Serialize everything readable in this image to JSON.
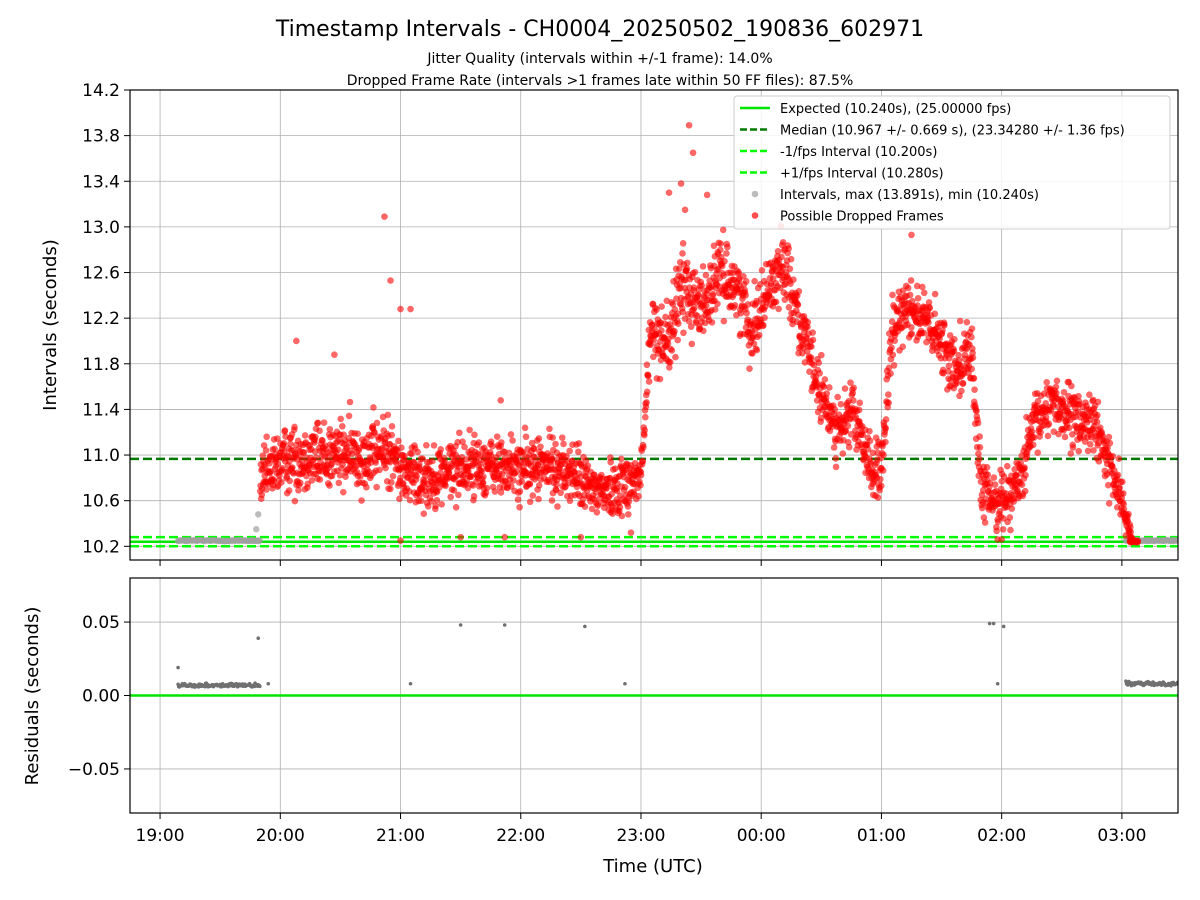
{
  "chart_data": [
    {
      "type": "scatter",
      "title": "Timestamp Intervals - CH0004_20250502_190836_602971",
      "subtitle_lines": [
        "Jitter Quality (intervals within +/-1 frame): 14.0%",
        "Dropped Frame Rate (intervals >1 frames late within 50 FF files): 87.5%"
      ],
      "ylabel": "Intervals (seconds)",
      "xlabel": "",
      "ylim": [
        10.08,
        14.2
      ],
      "yticks": [
        "10.2",
        "10.6",
        "11.0",
        "11.4",
        "11.8",
        "12.2",
        "12.6",
        "13.0",
        "13.4",
        "13.8",
        "14.2"
      ],
      "xlim": [
        "18:45",
        "03:28"
      ],
      "xticks": [
        "19:00",
        "20:00",
        "21:00",
        "22:00",
        "23:00",
        "00:00",
        "01:00",
        "02:00",
        "03:00"
      ],
      "grid": true,
      "legend_position": "top-right",
      "legend": [
        {
          "label": "Expected (10.240s), (25.00000 fps)",
          "style": "solid",
          "color": "#00e600"
        },
        {
          "label": "Median (10.967 +/- 0.669 s), (23.34280 +/- 1.36 fps)",
          "style": "dashed",
          "color": "#007a00"
        },
        {
          "label": "-1/fps Interval (10.200s)",
          "style": "dashed",
          "color": "#00ff00"
        },
        {
          "label": "+1/fps Interval (10.280s)",
          "style": "dashed",
          "color": "#00ff00"
        },
        {
          "label": "Intervals, max (13.891s), min (10.240s)",
          "style": "marker",
          "color": "#a0a0a0"
        },
        {
          "label": "Possible Dropped Frames",
          "style": "marker",
          "color": "#ff0000"
        }
      ],
      "reference_lines": [
        {
          "name": "Expected",
          "y": 10.24,
          "color": "#00e600",
          "dash": false
        },
        {
          "name": "Median",
          "y": 10.967,
          "color": "#007a00",
          "dash": true
        },
        {
          "name": "-1/fps",
          "y": 10.2,
          "color": "#00ff00",
          "dash": true
        },
        {
          "name": "+1/fps",
          "y": 10.28,
          "color": "#00ff00",
          "dash": true
        }
      ],
      "series": [
        {
          "name": "Intervals, max (13.891s), min (10.240s)",
          "color": "#a0a0a0",
          "segments": [
            {
              "start": "19:09",
              "end": "19:50",
              "y": 10.25
            },
            {
              "start": "03:02",
              "end": "03:28",
              "y": 10.25
            }
          ],
          "points": [
            {
              "x": "19:48",
              "y": 10.35
            },
            {
              "x": "19:49",
              "y": 10.48
            }
          ]
        },
        {
          "name": "Possible Dropped Frames",
          "color": "#ff0000",
          "trend": [
            {
              "x": "19:50",
              "y": 10.75,
              "spread": 0.12
            },
            {
              "x": "20:00",
              "y": 10.95,
              "spread": 0.14
            },
            {
              "x": "20:15",
              "y": 11.0,
              "spread": 0.15
            },
            {
              "x": "20:30",
              "y": 11.0,
              "spread": 0.15
            },
            {
              "x": "20:45",
              "y": 11.0,
              "spread": 0.15
            },
            {
              "x": "20:55",
              "y": 11.05,
              "spread": 0.15
            },
            {
              "x": "21:00",
              "y": 10.85,
              "spread": 0.14
            },
            {
              "x": "21:15",
              "y": 10.8,
              "spread": 0.13
            },
            {
              "x": "21:30",
              "y": 10.9,
              "spread": 0.13
            },
            {
              "x": "21:45",
              "y": 10.9,
              "spread": 0.13
            },
            {
              "x": "22:00",
              "y": 10.88,
              "spread": 0.13
            },
            {
              "x": "22:15",
              "y": 10.9,
              "spread": 0.13
            },
            {
              "x": "22:25",
              "y": 10.85,
              "spread": 0.13
            },
            {
              "x": "22:35",
              "y": 10.7,
              "spread": 0.12
            },
            {
              "x": "22:45",
              "y": 10.7,
              "spread": 0.12
            },
            {
              "x": "23:00",
              "y": 10.8,
              "spread": 0.13
            },
            {
              "x": "23:05",
              "y": 12.1,
              "spread": 0.15
            },
            {
              "x": "23:15",
              "y": 12.0,
              "spread": 0.15
            },
            {
              "x": "23:20",
              "y": 12.5,
              "spread": 0.2
            },
            {
              "x": "23:30",
              "y": 12.3,
              "spread": 0.15
            },
            {
              "x": "23:40",
              "y": 12.6,
              "spread": 0.14
            },
            {
              "x": "23:50",
              "y": 12.4,
              "spread": 0.14
            },
            {
              "x": "23:55",
              "y": 12.1,
              "spread": 0.14
            },
            {
              "x": "00:05",
              "y": 12.5,
              "spread": 0.14
            },
            {
              "x": "00:12",
              "y": 12.7,
              "spread": 0.14
            },
            {
              "x": "00:20",
              "y": 12.1,
              "spread": 0.14
            },
            {
              "x": "00:30",
              "y": 11.5,
              "spread": 0.13
            },
            {
              "x": "00:40",
              "y": 11.2,
              "spread": 0.13
            },
            {
              "x": "00:45",
              "y": 11.4,
              "spread": 0.13
            },
            {
              "x": "00:55",
              "y": 10.9,
              "spread": 0.13
            },
            {
              "x": "01:00",
              "y": 10.8,
              "spread": 0.13
            },
            {
              "x": "01:05",
              "y": 12.0,
              "spread": 0.15
            },
            {
              "x": "01:12",
              "y": 12.35,
              "spread": 0.13
            },
            {
              "x": "01:25",
              "y": 12.1,
              "spread": 0.13
            },
            {
              "x": "01:35",
              "y": 11.8,
              "spread": 0.14
            },
            {
              "x": "01:45",
              "y": 11.9,
              "spread": 0.14
            },
            {
              "x": "01:50",
              "y": 10.65,
              "spread": 0.12
            },
            {
              "x": "02:00",
              "y": 10.6,
              "spread": 0.12
            },
            {
              "x": "02:10",
              "y": 10.8,
              "spread": 0.12
            },
            {
              "x": "02:15",
              "y": 11.2,
              "spread": 0.13
            },
            {
              "x": "02:25",
              "y": 11.5,
              "spread": 0.13
            },
            {
              "x": "02:35",
              "y": 11.3,
              "spread": 0.13
            },
            {
              "x": "02:45",
              "y": 11.3,
              "spread": 0.13
            },
            {
              "x": "02:52",
              "y": 11.0,
              "spread": 0.12
            },
            {
              "x": "03:00",
              "y": 10.6,
              "spread": 0.1
            },
            {
              "x": "03:05",
              "y": 10.25,
              "spread": 0.02
            }
          ],
          "outliers": [
            {
              "x": "20:52",
              "y": 13.09
            },
            {
              "x": "20:55",
              "y": 12.53
            },
            {
              "x": "21:00",
              "y": 12.28
            },
            {
              "x": "21:05",
              "y": 12.28
            },
            {
              "x": "20:08",
              "y": 12.0
            },
            {
              "x": "20:27",
              "y": 11.88
            },
            {
              "x": "21:50",
              "y": 11.48
            },
            {
              "x": "23:24",
              "y": 13.891
            },
            {
              "x": "23:26",
              "y": 13.65
            },
            {
              "x": "23:20",
              "y": 13.38
            },
            {
              "x": "23:22",
              "y": 13.15
            },
            {
              "x": "23:33",
              "y": 13.28
            },
            {
              "x": "23:14",
              "y": 13.3
            },
            {
              "x": "01:15",
              "y": 12.93
            },
            {
              "x": "21:00",
              "y": 10.25
            },
            {
              "x": "21:30",
              "y": 10.28
            },
            {
              "x": "21:52",
              "y": 10.28
            },
            {
              "x": "22:30",
              "y": 10.28
            },
            {
              "x": "22:55",
              "y": 10.32
            },
            {
              "x": "01:58",
              "y": 10.26
            },
            {
              "x": "02:00",
              "y": 10.26
            }
          ]
        }
      ]
    },
    {
      "type": "scatter",
      "ylabel": "Residuals (seconds)",
      "xlabel": "Time (UTC)",
      "ylim": [
        -0.08,
        0.08
      ],
      "yticks": [
        "−0.05",
        "0.00",
        "0.05"
      ],
      "xlim": [
        "18:45",
        "03:28"
      ],
      "xticks": [
        "19:00",
        "20:00",
        "21:00",
        "22:00",
        "23:00",
        "00:00",
        "01:00",
        "02:00",
        "03:00"
      ],
      "grid": true,
      "reference_lines": [
        {
          "name": "Zero",
          "y": 0.0,
          "color": "#00e600",
          "dash": false
        }
      ],
      "series": [
        {
          "name": "Residuals",
          "color": "#707070",
          "segments": [
            {
              "start": "19:09",
              "end": "19:50",
              "y": 0.007
            },
            {
              "start": "03:02",
              "end": "03:28",
              "y": 0.008
            }
          ],
          "points": [
            {
              "x": "19:09",
              "y": 0.019
            },
            {
              "x": "19:49",
              "y": 0.039
            },
            {
              "x": "19:54",
              "y": 0.008
            },
            {
              "x": "21:05",
              "y": 0.008
            },
            {
              "x": "21:30",
              "y": 0.048
            },
            {
              "x": "21:52",
              "y": 0.048
            },
            {
              "x": "22:32",
              "y": 0.047
            },
            {
              "x": "22:52",
              "y": 0.008
            },
            {
              "x": "01:54",
              "y": 0.049
            },
            {
              "x": "01:56",
              "y": 0.049
            },
            {
              "x": "01:58",
              "y": 0.008
            },
            {
              "x": "02:01",
              "y": 0.047
            }
          ]
        }
      ]
    }
  ]
}
